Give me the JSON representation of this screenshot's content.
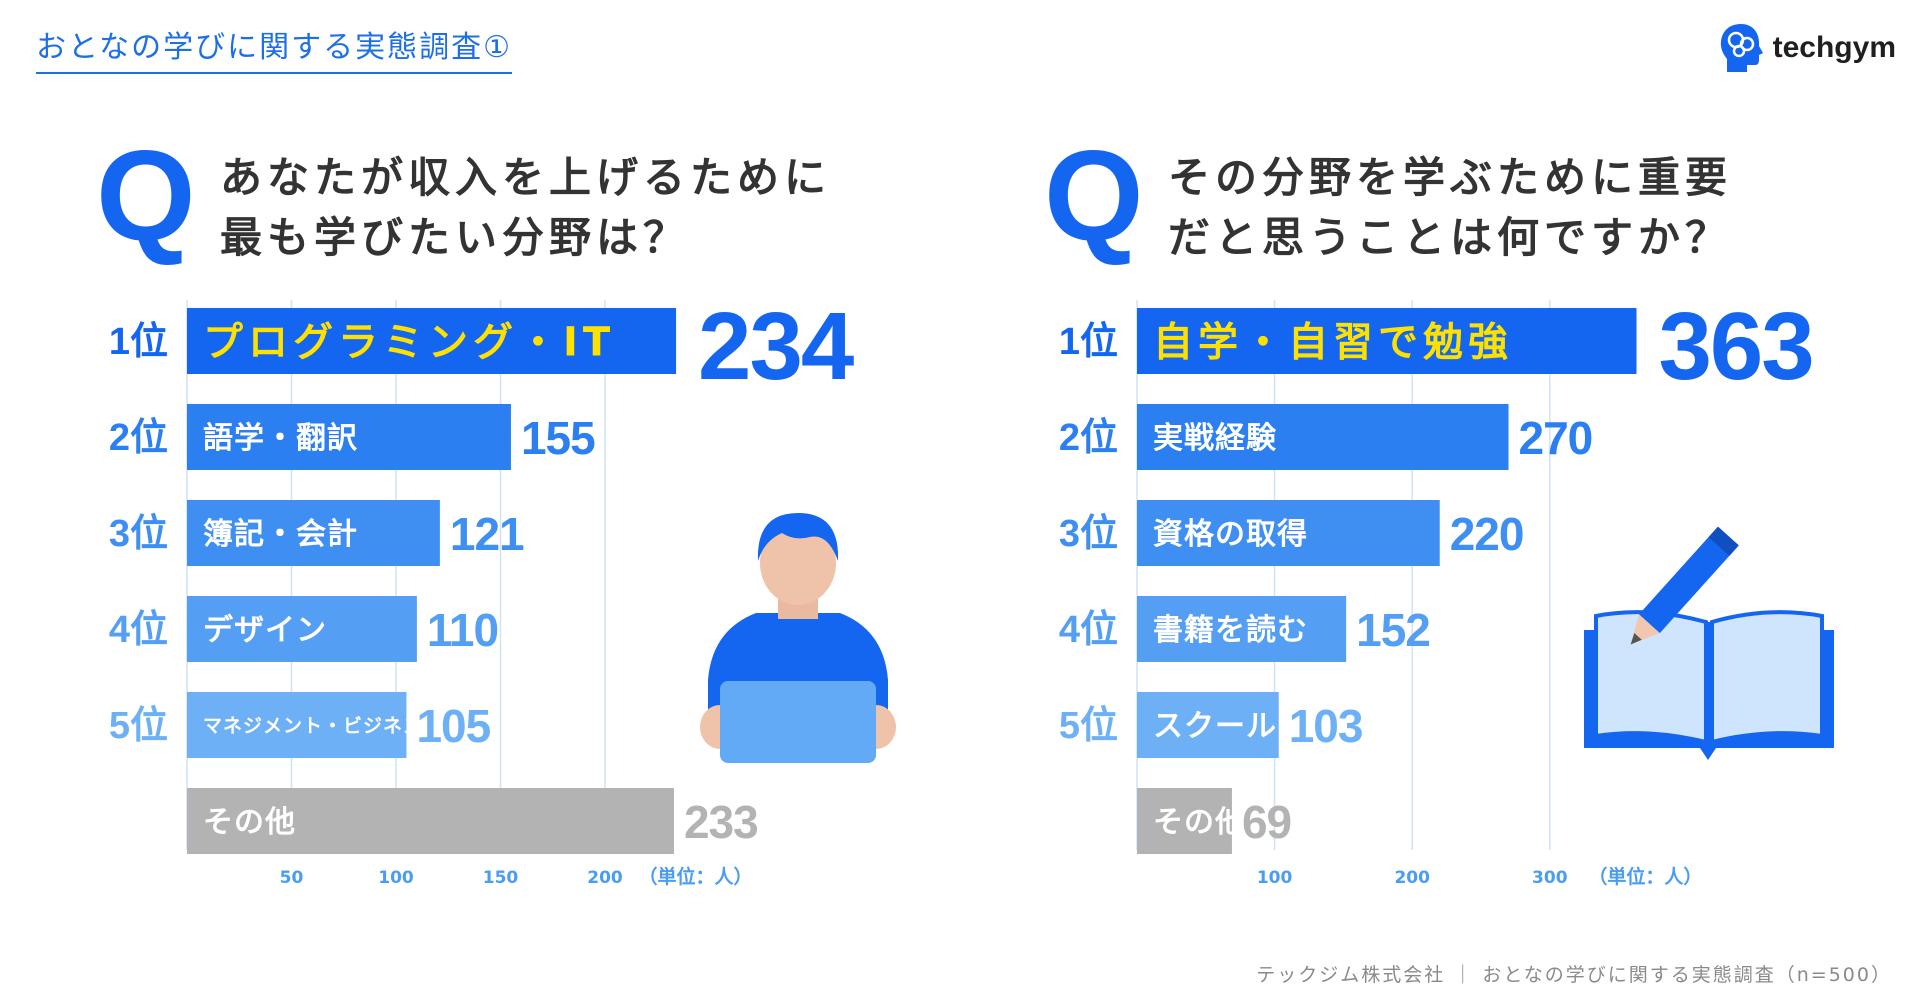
{
  "header": {
    "title": "おとなの学びに関する実態調査①"
  },
  "logo": {
    "text": "techgym"
  },
  "questions": [
    {
      "q": "Q",
      "line1": "あなたが収入を上げるために",
      "line2": "最も学びたい分野は？"
    },
    {
      "q": "Q",
      "line1": "その分野を学ぶために重要",
      "line2": "だと思うことは何ですか？"
    }
  ],
  "colors": {
    "accent": "#1466f0",
    "highlight": "#ffe100",
    "other": "#b3b3b3",
    "rank_text": "#1466f0"
  },
  "chart_data": [
    {
      "type": "bar",
      "orientation": "horizontal",
      "ranks": [
        "1位",
        "2位",
        "3位",
        "4位",
        "5位",
        ""
      ],
      "categories": [
        "プログラミング・IT",
        "語学・翻訳",
        "簿記・会計",
        "デザイン",
        "マネジメント・ビジネス",
        "その他"
      ],
      "values": [
        234,
        155,
        121,
        110,
        105,
        233
      ],
      "value_labels": [
        "234",
        "155",
        "121",
        "110",
        "105",
        "233"
      ],
      "xticks": [
        "50",
        "100",
        "150",
        "200"
      ],
      "xlim": [
        0,
        220
      ],
      "unit_label": "（単位：人）",
      "bar_colors": [
        "#1466f0",
        "#2b7ff0",
        "#3f8ff2",
        "#549ef4",
        "#6db0f6",
        "#b3b3b3"
      ],
      "grid": true
    },
    {
      "type": "bar",
      "orientation": "horizontal",
      "ranks": [
        "1位",
        "2位",
        "3位",
        "4位",
        "5位",
        ""
      ],
      "categories": [
        "自学・自習で勉強",
        "実戦経験",
        "資格の取得",
        "書籍を読む",
        "スクールに通う",
        "その他"
      ],
      "values": [
        363,
        270,
        220,
        152,
        103,
        69
      ],
      "value_labels": [
        "363",
        "270",
        "220",
        "152",
        "103",
        "69"
      ],
      "xticks": [
        "100",
        "200",
        "300"
      ],
      "xlim": [
        0,
        360
      ],
      "unit_label": "（単位：人）",
      "bar_colors": [
        "#1466f0",
        "#2b7ff0",
        "#3f8ff2",
        "#549ef4",
        "#6db0f6",
        "#b3b3b3"
      ],
      "grid": true
    }
  ],
  "footer": {
    "text": "テックジム株式会社 ｜ おとなの学びに関する実態調査（n=500）"
  }
}
